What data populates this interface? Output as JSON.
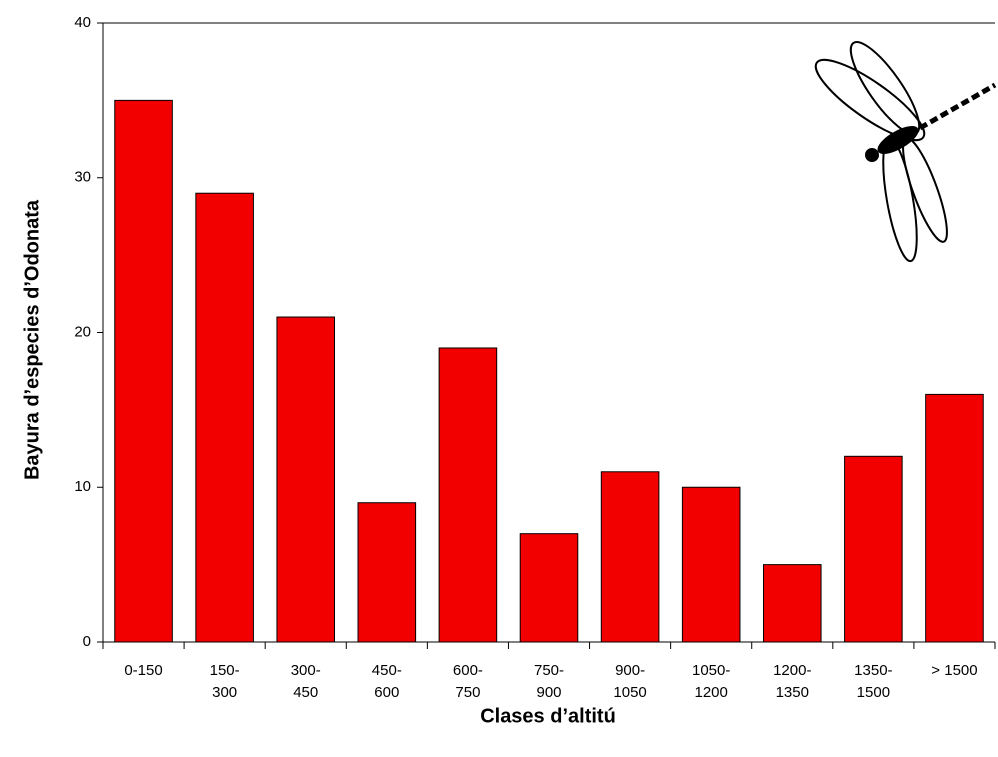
{
  "chart_data": {
    "type": "bar",
    "x_label": "Clases d’altitú",
    "y_label": "Bayura d’especies d’Odonata",
    "categories": [
      "0-150",
      "150-\n300",
      "300-\n450",
      "450-\n600",
      "600-\n750",
      "750-\n900",
      "900-\n1050",
      "1050-\n1200",
      "1200-\n1350",
      "1350-\n1500",
      "> 1500"
    ],
    "values": [
      35,
      29,
      21,
      9,
      19,
      7,
      11,
      10,
      5,
      12,
      16
    ],
    "color": "#f20000",
    "ylim": [
      0,
      40
    ],
    "yticks": [
      0,
      10,
      20,
      30,
      40
    ],
    "grid": false
  }
}
